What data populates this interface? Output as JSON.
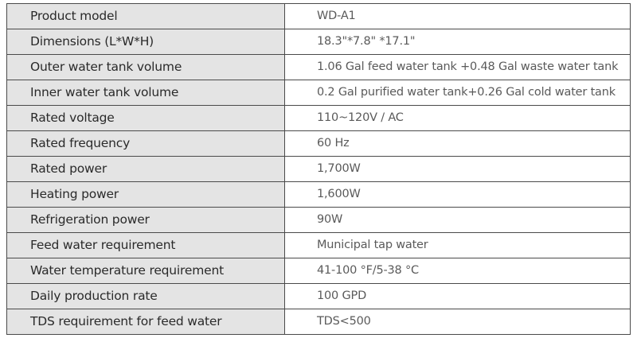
{
  "spec_table": {
    "rows": [
      {
        "label": "Product model",
        "value": "WD-A1"
      },
      {
        "label": "Dimensions (L*W*H)",
        "value": "18.3\"*7.8\" *17.1\""
      },
      {
        "label": "Outer water tank volume",
        "value": "1.06 Gal feed water tank +0.48 Gal waste water tank"
      },
      {
        "label": "Inner water tank volume",
        "value": "0.2 Gal purified water tank+0.26 Gal cold water tank"
      },
      {
        "label": "Rated voltage",
        "value": "110~120V / AC"
      },
      {
        "label": "Rated frequency",
        "value": "60 Hz"
      },
      {
        "label": "Rated power",
        "value": "1,700W"
      },
      {
        "label": "Heating power",
        "value": "1,600W"
      },
      {
        "label": "Refrigeration power",
        "value": "90W"
      },
      {
        "label": "Feed water requirement",
        "value": "Municipal tap water"
      },
      {
        "label": "Water temperature requirement",
        "value": "41-100 °F/5-38 °C"
      },
      {
        "label": "Daily production rate",
        "value": "100 GPD"
      },
      {
        "label": "TDS requirement for feed water",
        "value": "TDS<500"
      }
    ]
  }
}
